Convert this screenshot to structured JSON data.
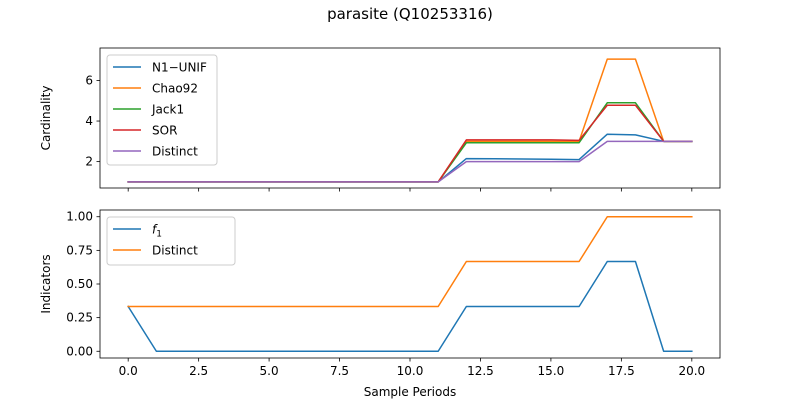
{
  "figure_title": "parasite (Q10253316)",
  "chart_data": [
    {
      "type": "line",
      "ylabel": "Cardinality",
      "xlabel": "",
      "xlim": [
        -1,
        21
      ],
      "ylim": [
        0.7,
        7.6
      ],
      "xticks": [
        0,
        2.5,
        5,
        7.5,
        10,
        12.5,
        15,
        17.5,
        20
      ],
      "xtick_labels_visible": false,
      "yticks": [
        2,
        4,
        6
      ],
      "ytick_labels": [
        "2",
        "4",
        "6"
      ],
      "legend_position": "upper-left",
      "x": [
        0,
        1,
        2,
        3,
        4,
        5,
        6,
        7,
        8,
        9,
        10,
        11,
        12,
        13,
        14,
        15,
        16,
        17,
        18,
        19,
        20
      ],
      "series": [
        {
          "name": "N1−UNIF",
          "color": "#1f77b4",
          "values": [
            1,
            1,
            1,
            1,
            1,
            1,
            1,
            1,
            1,
            1,
            1,
            1,
            2.15,
            2.14,
            2.13,
            2.12,
            2.1,
            3.35,
            3.32,
            3.0,
            3.0
          ]
        },
        {
          "name": "Chao92",
          "color": "#ff7f0e",
          "values": [
            1,
            1,
            1,
            1,
            1,
            1,
            1,
            1,
            1,
            1,
            1,
            1,
            3.0,
            3.0,
            3.0,
            3.0,
            3.0,
            7.05,
            7.05,
            3.0,
            3.0
          ]
        },
        {
          "name": "Jack1",
          "color": "#2ca02c",
          "values": [
            1,
            1,
            1,
            1,
            1,
            1,
            1,
            1,
            1,
            1,
            1,
            1,
            2.93,
            2.93,
            2.93,
            2.93,
            2.93,
            4.9,
            4.9,
            3.0,
            3.0
          ]
        },
        {
          "name": "SOR",
          "color": "#d62728",
          "values": [
            1,
            1,
            1,
            1,
            1,
            1,
            1,
            1,
            1,
            1,
            1,
            1,
            3.07,
            3.07,
            3.07,
            3.07,
            3.05,
            4.78,
            4.78,
            3.0,
            3.0
          ]
        },
        {
          "name": "Distinct",
          "color": "#9467bd",
          "values": [
            1,
            1,
            1,
            1,
            1,
            1,
            1,
            1,
            1,
            1,
            1,
            1,
            2.0,
            2.0,
            2.0,
            2.0,
            2.0,
            3.0,
            3.0,
            3.0,
            3.0
          ]
        }
      ]
    },
    {
      "type": "line",
      "ylabel": "Indicators",
      "xlabel": "Sample Periods",
      "xlim": [
        -1,
        21
      ],
      "ylim": [
        -0.05,
        1.05
      ],
      "xticks": [
        0,
        2.5,
        5,
        7.5,
        10,
        12.5,
        15,
        17.5,
        20
      ],
      "xtick_labels": [
        "0.0",
        "2.5",
        "5.0",
        "7.5",
        "10.0",
        "12.5",
        "15.0",
        "17.5",
        "20.0"
      ],
      "yticks": [
        0,
        0.25,
        0.5,
        0.75,
        1.0
      ],
      "ytick_labels": [
        "0.00",
        "0.25",
        "0.50",
        "0.75",
        "1.00"
      ],
      "legend_position": "upper-left",
      "x": [
        0,
        1,
        2,
        3,
        4,
        5,
        6,
        7,
        8,
        9,
        10,
        11,
        12,
        13,
        14,
        15,
        16,
        17,
        18,
        19,
        20
      ],
      "series": [
        {
          "name": "f1",
          "color": "#1f77b4",
          "values": [
            0.333,
            0,
            0,
            0,
            0,
            0,
            0,
            0,
            0,
            0,
            0,
            0,
            0.333,
            0.333,
            0.333,
            0.333,
            0.333,
            0.667,
            0.667,
            0,
            0
          ]
        },
        {
          "name": "Distinct",
          "color": "#ff7f0e",
          "values": [
            0.333,
            0.333,
            0.333,
            0.333,
            0.333,
            0.333,
            0.333,
            0.333,
            0.333,
            0.333,
            0.333,
            0.333,
            0.667,
            0.667,
            0.667,
            0.667,
            0.667,
            1.0,
            1.0,
            1.0,
            1.0
          ]
        }
      ]
    }
  ]
}
